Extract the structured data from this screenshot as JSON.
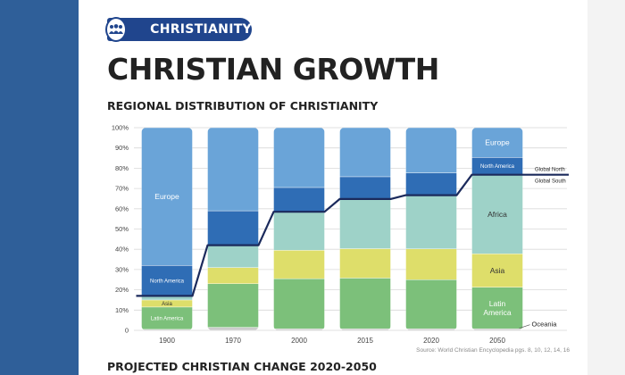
{
  "badge": {
    "label": "CHRISTIANITY",
    "icon": "people-group-icon"
  },
  "title": "CHRISTIAN GROWTH",
  "section1_heading": "REGIONAL DISTRIBUTION OF CHRISTIANITY",
  "section2_heading": "PROJECTED CHRISTIAN CHANGE 2020-2050",
  "source": "Source: World Christian Encyclopedia pgs. 8, 10, 12, 14, 16",
  "colors": {
    "band": "#2f5f99",
    "badge": "#20458d",
    "divider_line": "#1b2a5c"
  },
  "chart_data": {
    "type": "bar",
    "stacked": true,
    "categories": [
      "1900",
      "1970",
      "2000",
      "2015",
      "2020",
      "2050"
    ],
    "ylim": [
      0,
      100
    ],
    "yticks": [
      "0",
      "10%",
      "20%",
      "30%",
      "40%",
      "50%",
      "60%",
      "70%",
      "80%",
      "90%",
      "100%"
    ],
    "grid": true,
    "series": [
      {
        "name": "Oceania",
        "color": "#cccccc",
        "values": [
          0.5,
          1.5,
          0.8,
          0.8,
          0.8,
          0.8
        ]
      },
      {
        "name": "Latin America",
        "color": "#7cc07a",
        "values": [
          11,
          21.5,
          24.7,
          25,
          24.2,
          20.5
        ]
      },
      {
        "name": "Asia",
        "color": "#dede6a",
        "values": [
          3.5,
          8,
          14,
          14.5,
          15.2,
          16.5
        ]
      },
      {
        "name": "Africa",
        "color": "#9ed2c8",
        "values": [
          2,
          11,
          19,
          24.5,
          26.5,
          39
        ]
      },
      {
        "name": "North America",
        "color": "#2f6db5",
        "values": [
          15,
          17,
          12,
          11,
          11,
          8.5
        ]
      },
      {
        "name": "Europe",
        "color": "#6aa4d8",
        "values": [
          68,
          41,
          29.5,
          24.2,
          22.3,
          14.7
        ]
      }
    ],
    "segment_labels": [
      {
        "series": "Europe",
        "category": "1900",
        "text": "Europe"
      },
      {
        "series": "North America",
        "category": "1900",
        "text": "North America"
      },
      {
        "series": "Asia",
        "category": "1900",
        "text": "Asia"
      },
      {
        "series": "Latin America",
        "category": "1900",
        "text": "Latin America"
      },
      {
        "series": "Europe",
        "category": "2050",
        "text": "Europe"
      },
      {
        "series": "North America",
        "category": "2050",
        "text": "North America"
      },
      {
        "series": "Africa",
        "category": "2050",
        "text": "Africa"
      },
      {
        "series": "Asia",
        "category": "2050",
        "text": "Asia"
      },
      {
        "series": "Latin America",
        "category": "2050",
        "text": "Latin America"
      }
    ],
    "annotations": {
      "global_north": "Global North",
      "global_south": "Global South",
      "oceania": "Oceania"
    }
  }
}
